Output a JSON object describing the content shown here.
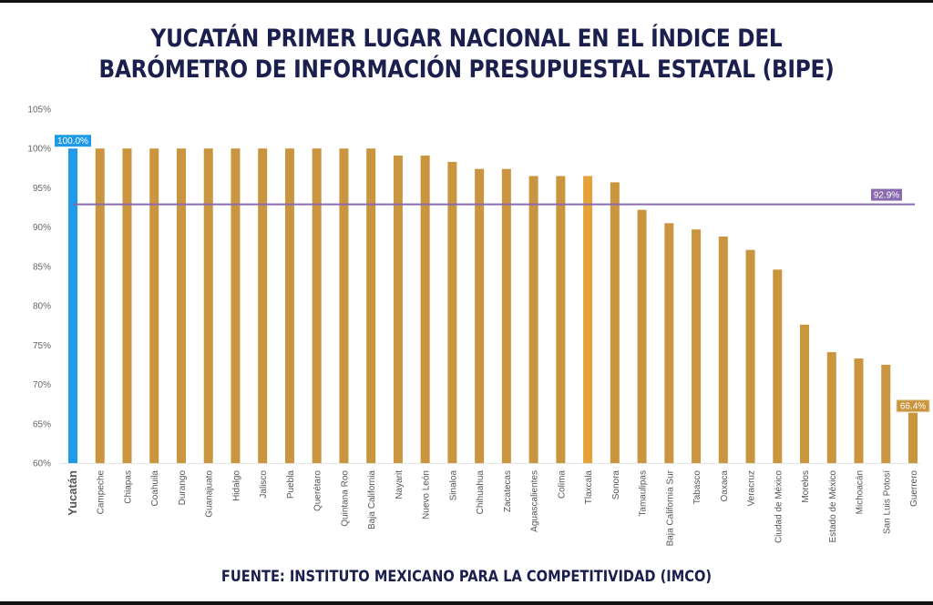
{
  "title_line1": "YUCATÁN PRIMER LUGAR NACIONAL EN EL ÍNDICE DEL",
  "title_line2": "BARÓMETRO DE INFORMACIÓN PRESUPUESTAL ESTATAL (BIPE)",
  "source": "FUENTE: INSTITUTO MEXICANO PARA LA COMPETITIVIDAD (IMCO)",
  "chart_data": {
    "type": "bar",
    "title": "YUCATÁN PRIMER LUGAR NACIONAL EN EL ÍNDICE DEL BARÓMETRO DE INFORMACIÓN PRESUPUESTAL ESTATAL (BIPE)",
    "xlabel": "",
    "ylabel": "",
    "ylim": [
      60,
      105
    ],
    "yticks": [
      60,
      65,
      70,
      75,
      80,
      85,
      90,
      95,
      100,
      105
    ],
    "ytick_suffix": "%",
    "grid": false,
    "categories": [
      "Yucatán",
      "Campeche",
      "Chiapas",
      "Coahuila",
      "Durango",
      "Guanajuato",
      "Hidalgo",
      "Jalisco",
      "Puebla",
      "Querétaro",
      "Quintana Roo",
      "Baja California",
      "Nayarit",
      "Nuevo León",
      "Sinaloa",
      "Chihuahua",
      "Zacatecas",
      "Aguascalientes",
      "Colima",
      "Tlaxcala",
      "Sonora",
      "Tamaulipas",
      "Baja California Sur",
      "Tabasco",
      "Oaxaca",
      "Veracruz",
      "Ciudad de México",
      "Morelos",
      "Estado de México",
      "Michoacán",
      "San Luis Potosí",
      "Guerrero"
    ],
    "values": [
      100.0,
      100,
      100,
      100,
      100,
      100,
      100,
      100,
      100,
      100,
      100,
      100,
      99.1,
      99.1,
      98.3,
      97.4,
      97.4,
      96.5,
      96.5,
      96.5,
      95.7,
      92.2,
      90.5,
      89.7,
      88.8,
      87.1,
      84.6,
      77.6,
      74.1,
      73.3,
      72.5,
      66.4
    ],
    "highlight": {
      "category": "Yucatán",
      "label": "100.0%",
      "color": "#1e9be8"
    },
    "min_label": {
      "category": "Guerrero",
      "label": "66.4%"
    },
    "reference_line": {
      "value": 92.9,
      "label": "92.9%",
      "color": "#8a6bb0"
    },
    "bar_color": "#c9953f",
    "alt_bar_color": {
      "category": "Tlaxcala",
      "color": "#e3a33a"
    }
  }
}
